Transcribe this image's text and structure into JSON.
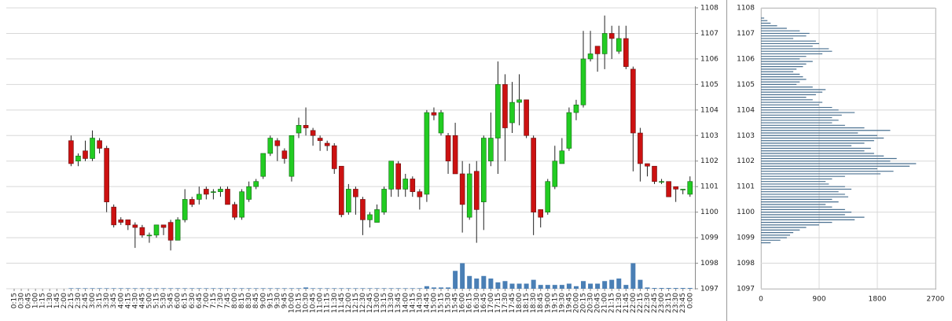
{
  "chart_data": [
    {
      "type": "candlestick",
      "categories": [
        "0:15",
        "0:30",
        "0:45",
        "1:00",
        "1:15",
        "1:30",
        "1:45",
        "2:00",
        "2:15",
        "2:30",
        "2:45",
        "3:00",
        "3:15",
        "3:30",
        "3:45",
        "4:00",
        "4:15",
        "4:30",
        "4:45",
        "5:00",
        "5:15",
        "5:30",
        "5:45",
        "6:00",
        "6:15",
        "6:30",
        "6:45",
        "7:00",
        "7:15",
        "7:30",
        "7:45",
        "8:00",
        "8:15",
        "8:30",
        "8:45",
        "9:00",
        "9:15",
        "9:30",
        "9:45",
        "10:00",
        "10:15",
        "10:30",
        "10:45",
        "11:00",
        "11:15",
        "11:30",
        "11:45",
        "12:00",
        "12:15",
        "12:30",
        "12:45",
        "13:00",
        "13:15",
        "13:30",
        "13:45",
        "14:00",
        "14:15",
        "14:30",
        "14:45",
        "15:00",
        "15:15",
        "15:30",
        "15:45",
        "16:00",
        "16:15",
        "16:30",
        "16:45",
        "17:00",
        "17:15",
        "17:30",
        "17:45",
        "18:00",
        "18:15",
        "18:30",
        "18:45",
        "19:00",
        "19:15",
        "19:30",
        "19:45",
        "20:00",
        "20:15",
        "20:30",
        "20:45",
        "21:00",
        "21:15",
        "21:30",
        "21:45",
        "22:00",
        "22:15",
        "22:30",
        "22:45",
        "23:00",
        "23:15",
        "23:30",
        "23:45",
        "0:00"
      ],
      "open": [
        null,
        null,
        null,
        null,
        null,
        null,
        null,
        null,
        1102.8,
        1102,
        1102.4,
        1102.1,
        1102.8,
        1102.5,
        1100.2,
        1099.7,
        1099.7,
        1099.5,
        1099.4,
        1099.1,
        1099.1,
        1099.5,
        1099.6,
        1098.9,
        1099.7,
        1100.5,
        1100.5,
        1100.9,
        1100.8,
        1100.8,
        1100.9,
        1100.3,
        1099.8,
        1100.5,
        1101,
        1101.4,
        1102.3,
        1102.8,
        1102.4,
        1101.4,
        1103.1,
        1103.4,
        1103.2,
        1102.9,
        1102.7,
        1102.6,
        1101.8,
        1100,
        1100.9,
        1100.5,
        1099.7,
        1099.6,
        1100,
        1100.9,
        1101.9,
        1100.9,
        1101.3,
        1100.8,
        1100.7,
        1103.9,
        1103.1,
        1103,
        1103,
        1101.5,
        1099.8,
        1101.6,
        1100.4,
        1102,
        1102.9,
        1105,
        1103.5,
        1104.3,
        1104.4,
        1102.9,
        1100.1,
        1100,
        1101,
        1101.9,
        1102.5,
        1103.9,
        1104.2,
        1106,
        1106.5,
        1106.2,
        1107,
        1106.3,
        1106.8,
        1105.6,
        1103.1,
        1101.9,
        1101.8,
        1101.2,
        1101.2,
        1101,
        1100.9,
        1100.7
      ],
      "high": [
        null,
        null,
        null,
        null,
        null,
        null,
        null,
        null,
        1103,
        1102.3,
        1102.8,
        1103.2,
        1102.9,
        1102.6,
        1100.3,
        1099.8,
        1099.7,
        1099.6,
        1099.5,
        1099.2,
        1099.5,
        1099.5,
        1099.7,
        1099.8,
        1100.9,
        1100.6,
        1101,
        1101,
        1100.9,
        1101,
        1101,
        1100.4,
        1100.9,
        1101.2,
        1101.3,
        1102.3,
        1103,
        1102.9,
        1102.5,
        1103,
        1103.7,
        1104.1,
        1103.3,
        1103,
        1102.8,
        1102.7,
        1101.8,
        1101.1,
        1101,
        1100.6,
        1100,
        1100.3,
        1101,
        1102,
        1102,
        1101.5,
        1101.4,
        1100.9,
        1104,
        1104.1,
        1104,
        1103.1,
        1103.5,
        1102,
        1101.9,
        1102,
        1103,
        1103.9,
        1105.9,
        1105.4,
        1105.1,
        1105.4,
        1104.4,
        1103,
        1100.1,
        1101.3,
        1102.6,
        1102.9,
        1104.1,
        1104.4,
        1107.1,
        1107.1,
        1106.5,
        1107.7,
        1107.3,
        1107.3,
        1107.3,
        1105.7,
        1103.3,
        1101.9,
        1101.8,
        1101.3,
        1101.2,
        1101,
        1100.9,
        1101.4
      ],
      "low": [
        null,
        null,
        null,
        null,
        null,
        null,
        null,
        null,
        1101.8,
        1101.8,
        1102,
        1102,
        1102.3,
        1100,
        1099.4,
        1099.5,
        1099.3,
        1098.6,
        1099,
        1098.8,
        1099,
        1099.1,
        1098.5,
        1098.9,
        1099.6,
        1100.2,
        1100.3,
        1100.5,
        1100.5,
        1100.6,
        1100.3,
        1099.7,
        1099.7,
        1100.4,
        1100.9,
        1101.3,
        1102.2,
        1102,
        1101.9,
        1101.2,
        1102.9,
        1103,
        1102.6,
        1102.4,
        1102.4,
        1101.5,
        1099.8,
        1099.9,
        1099.9,
        1099.1,
        1099.4,
        1099.6,
        1099.9,
        1100.6,
        1100.6,
        1100.6,
        1100.6,
        1100.1,
        1100.4,
        1103.6,
        1103,
        1101.5,
        1101.5,
        1099.2,
        1099.7,
        1098.8,
        1099.3,
        1101.8,
        1101.5,
        1102,
        1103.1,
        1103.4,
        1102.9,
        1099.1,
        1099.4,
        1099.9,
        1100.9,
        1101.9,
        1102.4,
        1103.6,
        1104.1,
        1105.9,
        1105.5,
        1105.6,
        1106,
        1106.2,
        1105.6,
        1101.6,
        1101.2,
        1101.4,
        1101.1,
        1101.1,
        1100.6,
        1100.4,
        1100.7,
        1100.6
      ],
      "close": [
        null,
        null,
        null,
        null,
        null,
        null,
        null,
        null,
        1101.9,
        1102.2,
        1102.1,
        1102.9,
        1102.5,
        1100.4,
        1099.5,
        1099.6,
        1099.5,
        1099.4,
        1099.1,
        1099.1,
        1099.5,
        1099.4,
        1098.9,
        1099.7,
        1100.5,
        1100.3,
        1100.7,
        1100.7,
        1100.8,
        1100.9,
        1100.3,
        1099.8,
        1100.8,
        1101,
        1101.2,
        1102.3,
        1102.9,
        1102.6,
        1102.1,
        1103,
        1103.4,
        1103.3,
        1103,
        1102.8,
        1102.6,
        1101.7,
        1099.9,
        1100.9,
        1100.6,
        1099.7,
        1099.9,
        1100.1,
        1100.9,
        1102,
        1100.9,
        1101.3,
        1100.8,
        1100.6,
        1103.9,
        1103.8,
        1103.9,
        1102,
        1101.5,
        1100.3,
        1101.5,
        1100.1,
        1102.9,
        1102.9,
        1105,
        1103.3,
        1104.3,
        1104.4,
        1103,
        1100,
        1099.8,
        1101.2,
        1102,
        1102.4,
        1103.9,
        1104.2,
        1106,
        1106.2,
        1106.2,
        1107,
        1106.8,
        1106.8,
        1105.7,
        1103.1,
        1101.9,
        1101.8,
        1101.2,
        1101.2,
        1100.6,
        1100.9,
        1100.9,
        1101.2
      ],
      "volume": [
        null,
        null,
        null,
        null,
        null,
        null,
        null,
        null,
        0.02,
        0.02,
        0.02,
        0.02,
        0.02,
        0.02,
        0.02,
        0.02,
        0.02,
        0.02,
        0.02,
        0.02,
        0.02,
        0.02,
        0.02,
        0.02,
        0.02,
        0.02,
        0.02,
        0.02,
        0.02,
        0.02,
        0.02,
        0.02,
        0.02,
        0.02,
        0.02,
        0.02,
        0.02,
        0.02,
        0.02,
        0.02,
        0.02,
        0.05,
        0.02,
        0.02,
        0.02,
        0.02,
        0.02,
        0.02,
        0.02,
        0.02,
        0.02,
        0.02,
        0.02,
        0.02,
        0.02,
        0.02,
        0.02,
        0.02,
        0.1,
        0.05,
        0.05,
        0.05,
        0.7,
        1.0,
        0.5,
        0.4,
        0.5,
        0.4,
        0.25,
        0.3,
        0.2,
        0.2,
        0.2,
        0.35,
        0.15,
        0.15,
        0.15,
        0.15,
        0.2,
        0.1,
        0.3,
        0.2,
        0.2,
        0.3,
        0.35,
        0.4,
        0.15,
        1.0,
        0.35,
        0.05,
        0.03,
        0.03,
        0.03,
        0.03,
        0.03,
        0.03
      ],
      "up_color": "#22cc22",
      "down_color": "#cc1111",
      "volume_color": "#4a7fb5",
      "ylim": [
        1097,
        1108
      ],
      "yticks": [
        1097,
        1098,
        1099,
        1100,
        1101,
        1102,
        1103,
        1104,
        1105,
        1106,
        1107,
        1108
      ],
      "grid": true
    },
    {
      "type": "profile",
      "y": [
        1107.6,
        1107.5,
        1107.4,
        1107.3,
        1107.2,
        1107.1,
        1107.0,
        1106.9,
        1106.8,
        1106.7,
        1106.6,
        1106.5,
        1106.4,
        1106.3,
        1106.2,
        1106.1,
        1106.0,
        1105.9,
        1105.8,
        1105.7,
        1105.6,
        1105.5,
        1105.4,
        1105.3,
        1105.2,
        1105.1,
        1105.0,
        1104.9,
        1104.8,
        1104.7,
        1104.6,
        1104.5,
        1104.4,
        1104.3,
        1104.2,
        1104.1,
        1104.0,
        1103.9,
        1103.8,
        1103.7,
        1103.6,
        1103.5,
        1103.4,
        1103.3,
        1103.2,
        1103.1,
        1103.0,
        1102.9,
        1102.8,
        1102.7,
        1102.6,
        1102.5,
        1102.4,
        1102.3,
        1102.2,
        1102.1,
        1102.0,
        1101.9,
        1101.8,
        1101.7,
        1101.6,
        1101.5,
        1101.4,
        1101.3,
        1101.2,
        1101.1,
        1101.0,
        1100.9,
        1100.8,
        1100.7,
        1100.6,
        1100.5,
        1100.4,
        1100.3,
        1100.2,
        1100.1,
        1100.0,
        1099.9,
        1099.8,
        1099.7,
        1099.6,
        1099.5,
        1099.4,
        1099.3,
        1099.2,
        1099.1,
        1099.0,
        1098.9,
        1098.8
      ],
      "values": [
        50,
        100,
        150,
        250,
        400,
        600,
        750,
        700,
        500,
        850,
        900,
        800,
        1050,
        1100,
        950,
        700,
        600,
        800,
        700,
        650,
        550,
        500,
        600,
        650,
        700,
        600,
        550,
        800,
        1000,
        950,
        850,
        700,
        800,
        950,
        900,
        1100,
        1200,
        1450,
        1250,
        1100,
        1200,
        1100,
        1300,
        1600,
        2000,
        1500,
        1800,
        1900,
        1750,
        1600,
        1400,
        1700,
        1600,
        1750,
        1900,
        2100,
        2000,
        2400,
        2300,
        1800,
        2050,
        1850,
        1300,
        1100,
        1000,
        1050,
        1300,
        1400,
        1200,
        1300,
        1350,
        1100,
        1200,
        1000,
        1100,
        1300,
        1400,
        1300,
        1600,
        1450,
        1100,
        900,
        700,
        600,
        500,
        450,
        400,
        300,
        150
      ],
      "color": "#4a7090",
      "xlim": [
        0,
        2700
      ],
      "xticks": [
        0,
        900,
        1800,
        2700
      ],
      "ylim": [
        1097,
        1108
      ],
      "yticks": [
        1097,
        1098,
        1099,
        1100,
        1101,
        1102,
        1103,
        1104,
        1105,
        1106,
        1107,
        1108
      ],
      "grid": true
    }
  ]
}
